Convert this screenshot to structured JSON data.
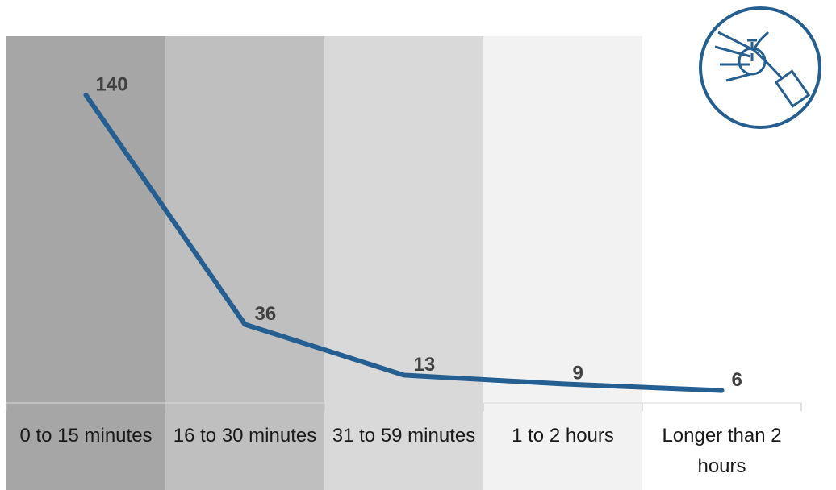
{
  "chart_data": {
    "type": "line",
    "categories": [
      "0 to 15 minutes",
      "16 to 30 minutes",
      "31 to 59 minutes",
      "1 to 2 hours",
      "Longer than 2 hours"
    ],
    "values": [
      140,
      36,
      13,
      9,
      6
    ],
    "color": "#255e91",
    "band_colors": [
      "#a6a6a6",
      "#bfbfbf",
      "#d9d9d9",
      "#f2f2f2",
      "#ffffff"
    ],
    "ylim": [
      0,
      140
    ]
  }
}
